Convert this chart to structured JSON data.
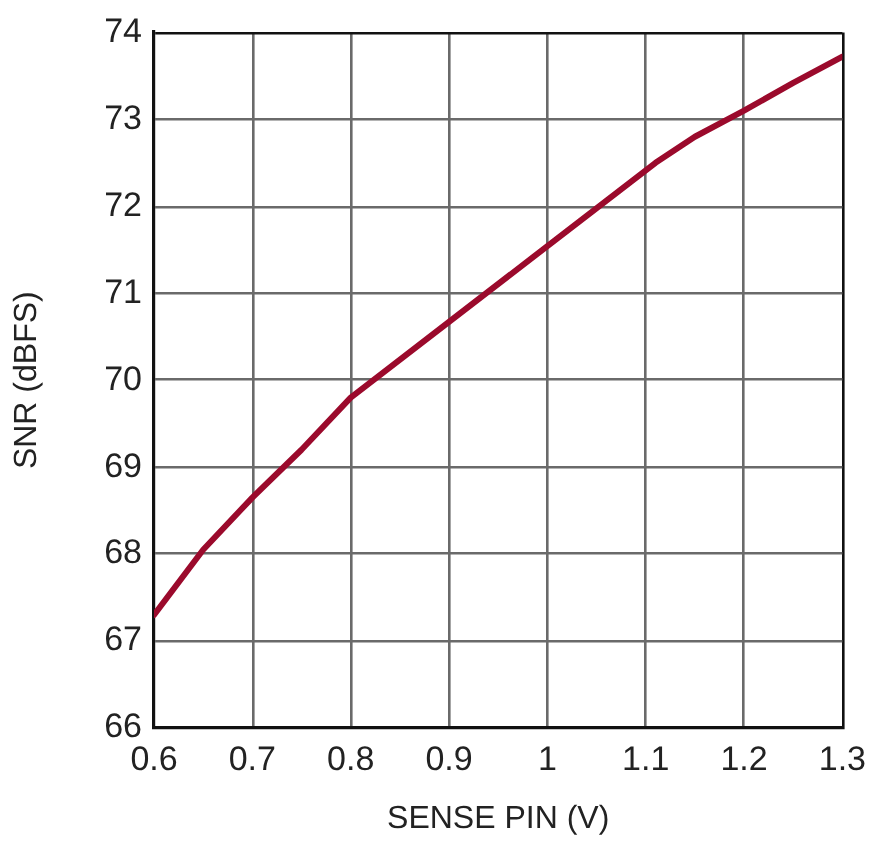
{
  "chart_data": {
    "type": "line",
    "xlabel": "SENSE PIN (V)",
    "ylabel": "SNR (dBFS)",
    "x": [
      0.6,
      0.65,
      0.7,
      0.75,
      0.8,
      1.11,
      1.15,
      1.2,
      1.25,
      1.3
    ],
    "series": [
      {
        "color": "#9b0a2c",
        "values": [
          67.3,
          68.05,
          68.65,
          69.2,
          69.8,
          72.5,
          72.8,
          73.1,
          73.42,
          73.72
        ]
      }
    ],
    "xlim": [
      0.6,
      1.3
    ],
    "xticks": [
      0.6,
      0.7,
      0.8,
      0.9,
      1,
      1.1,
      1.2,
      1.3
    ],
    "ylim": [
      66,
      74
    ],
    "yticks": [
      66,
      67,
      68,
      69,
      70,
      71,
      72,
      73,
      74
    ],
    "grid": true,
    "legend": false,
    "marker": "none",
    "line_style": "solid"
  }
}
